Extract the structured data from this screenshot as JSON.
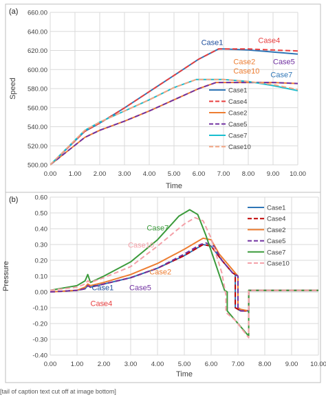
{
  "chart_data": [
    {
      "type": "line",
      "panel_label": "(a)",
      "xlabel": "Time",
      "ylabel": "Speed",
      "xlim": [
        0,
        10
      ],
      "ylim": [
        500,
        650
      ],
      "xticks": [
        "0.00",
        "1.00",
        "2.00",
        "3.00",
        "4.00",
        "5.00",
        "6.00",
        "7.00",
        "8.00",
        "9.00",
        "10.00"
      ],
      "yticks": [
        "500.00",
        "520.00",
        "540.00",
        "560.00",
        "580.00",
        "600.00",
        "620.00",
        "640.00",
        "660.00"
      ],
      "grid": true,
      "legend": "right",
      "series": [
        {
          "name": "Case1",
          "color": "#2e75b6",
          "dash": "solid",
          "x": [
            0,
            1.4,
            2,
            3,
            4,
            5,
            6,
            6.8,
            7,
            8,
            9,
            10
          ],
          "y": [
            500,
            533,
            541,
            556,
            572,
            588,
            604,
            614,
            614,
            613,
            611,
            609
          ]
        },
        {
          "name": "Case4",
          "color": "#e83e3e",
          "dash": "dash",
          "x": [
            0,
            1.4,
            2,
            3,
            4,
            5,
            6,
            6.8,
            7,
            8,
            9,
            10
          ],
          "y": [
            500,
            533,
            541,
            556,
            572,
            588,
            604,
            614,
            614,
            614,
            613,
            612
          ]
        },
        {
          "name": "Case2",
          "color": "#ed7d31",
          "dash": "solid",
          "x": [
            0,
            1.4,
            2,
            3,
            4,
            5,
            6,
            6.7,
            7,
            8,
            9,
            10
          ],
          "y": [
            500,
            527,
            534,
            543,
            553,
            564,
            575,
            581,
            581,
            581,
            581,
            580
          ]
        },
        {
          "name": "Case5",
          "color": "#7030a0",
          "dash": "dash",
          "x": [
            0,
            1.4,
            2,
            3,
            4,
            5,
            6,
            6.7,
            7,
            8,
            9,
            10
          ],
          "y": [
            500,
            527,
            534,
            543,
            553,
            564,
            575,
            581,
            581,
            581,
            581,
            580
          ]
        },
        {
          "name": "Case7",
          "color": "#17becf",
          "dash": "solid",
          "x": [
            0,
            1.4,
            2,
            3,
            4,
            5,
            5.9,
            6.5,
            7,
            8,
            9,
            10
          ],
          "y": [
            500,
            534,
            542,
            553,
            564,
            576,
            584,
            584,
            584,
            582,
            578,
            573
          ]
        },
        {
          "name": "Case10",
          "color": "#f4a582",
          "dash": "dash",
          "x": [
            0,
            1.4,
            2,
            3,
            4,
            5,
            5.9,
            6.5,
            7,
            8,
            9,
            10
          ],
          "y": [
            500,
            534,
            542,
            553,
            564,
            576,
            584,
            584,
            584,
            582,
            579,
            574
          ]
        }
      ],
      "annotations": [
        {
          "text": "Case1",
          "x": 6.1,
          "y": 618,
          "color": "#1f4e9c"
        },
        {
          "text": "Case4",
          "x": 8.4,
          "y": 620,
          "color": "#e83e3e"
        },
        {
          "text": "Case2",
          "x": 7.4,
          "y": 599,
          "color": "#ed7d31"
        },
        {
          "text": "Case5",
          "x": 9.0,
          "y": 599,
          "color": "#7030a0"
        },
        {
          "text": "Case10",
          "x": 7.4,
          "y": 590,
          "color": "#ed7d31"
        },
        {
          "text": "Case7",
          "x": 8.9,
          "y": 586,
          "color": "#2e75b6"
        }
      ]
    },
    {
      "type": "line",
      "panel_label": "(b)",
      "xlabel": "Time",
      "ylabel": "Pressure",
      "xlim": [
        0,
        10
      ],
      "ylim": [
        -0.4,
        0.6
      ],
      "xticks": [
        "0.00",
        "1.00",
        "2.00",
        "3.00",
        "4.00",
        "5.00",
        "6.00",
        "7.00",
        "8.00",
        "9.00",
        "10.00"
      ],
      "yticks": [
        "-0.40",
        "-0.30",
        "-0.20",
        "-0.10",
        "0.00",
        "0.10",
        "0.20",
        "0.30",
        "0.40",
        "0.50",
        "0.60"
      ],
      "grid": true,
      "legend": "right",
      "series": [
        {
          "name": "Case1",
          "color": "#2e75b6",
          "dash": "solid",
          "x": [
            0,
            1,
            1.3,
            1.4,
            1.5,
            2,
            3,
            4,
            5,
            5.5,
            5.7,
            6,
            6.4,
            6.8,
            6.9,
            6.9,
            7.1,
            7.4,
            7.4,
            8,
            10
          ],
          "y": [
            0,
            0.01,
            0.02,
            0.04,
            0.03,
            0.05,
            0.09,
            0.15,
            0.23,
            0.28,
            0.3,
            0.29,
            0.2,
            0.12,
            0.11,
            -0.1,
            -0.12,
            -0.12,
            0.01,
            0.01,
            0.01
          ]
        },
        {
          "name": "Case4",
          "color": "#c00000",
          "dash": "dash",
          "x": [
            0,
            1,
            1.3,
            1.4,
            1.5,
            2,
            3,
            4,
            5,
            5.5,
            5.7,
            6,
            6.4,
            6.8,
            6.9,
            6.9,
            7.1,
            7.4,
            7.4,
            8,
            10
          ],
          "y": [
            0,
            0.01,
            0.02,
            0.04,
            0.03,
            0.05,
            0.09,
            0.15,
            0.23,
            0.28,
            0.3,
            0.29,
            0.2,
            0.12,
            0.11,
            -0.1,
            -0.12,
            -0.12,
            0.01,
            0.01,
            0.01
          ]
        },
        {
          "name": "Case2",
          "color": "#ed7d31",
          "dash": "solid",
          "x": [
            0,
            1,
            1.3,
            1.4,
            1.5,
            2,
            3,
            4,
            5,
            5.5,
            5.7,
            6,
            6.3,
            6.8,
            7.0,
            7.0,
            7.1,
            7.4,
            7.4,
            8,
            10
          ],
          "y": [
            0,
            0.01,
            0.03,
            0.05,
            0.04,
            0.06,
            0.11,
            0.18,
            0.27,
            0.32,
            0.34,
            0.33,
            0.24,
            0.14,
            0.1,
            -0.1,
            -0.11,
            -0.12,
            0.01,
            0.01,
            0.01
          ]
        },
        {
          "name": "Case5",
          "color": "#7030a0",
          "dash": "dash",
          "x": [
            0,
            1,
            1.3,
            1.4,
            1.5,
            2,
            3,
            4,
            5,
            5.6,
            5.8,
            6.1,
            6.4,
            6.8,
            7.0,
            7.0,
            7.1,
            7.4,
            7.4,
            8,
            10
          ],
          "y": [
            0,
            0.01,
            0.02,
            0.04,
            0.03,
            0.05,
            0.09,
            0.15,
            0.24,
            0.3,
            0.31,
            0.29,
            0.2,
            0.12,
            0.1,
            -0.11,
            -0.12,
            -0.12,
            0.01,
            0.01,
            0.01
          ]
        },
        {
          "name": "Case7",
          "color": "#3a9a3a",
          "dash": "solid",
          "x": [
            0,
            1,
            1.3,
            1.4,
            1.5,
            2,
            3,
            4,
            4.8,
            5.2,
            5.5,
            5.8,
            6.2,
            6.5,
            6.6,
            6.6,
            7.0,
            7.4,
            7.4,
            8,
            10
          ],
          "y": [
            0.01,
            0.04,
            0.07,
            0.11,
            0.06,
            0.1,
            0.19,
            0.33,
            0.48,
            0.52,
            0.49,
            0.36,
            0.16,
            0.01,
            0.0,
            -0.12,
            -0.2,
            -0.28,
            0.01,
            0.01,
            0.01
          ]
        },
        {
          "name": "Case10",
          "color": "#f4a0a8",
          "dash": "dash",
          "x": [
            0,
            1,
            1.3,
            1.4,
            1.5,
            2,
            3,
            4,
            5,
            5.4,
            5.7,
            6,
            6.4,
            6.55,
            6.55,
            6.9,
            7.4,
            7.4,
            8,
            10
          ],
          "y": [
            0.01,
            0.03,
            0.05,
            0.07,
            0.06,
            0.09,
            0.16,
            0.29,
            0.43,
            0.47,
            0.45,
            0.34,
            0.12,
            -0.02,
            -0.13,
            -0.18,
            -0.29,
            0.01,
            0.01,
            0.01
          ]
        }
      ],
      "annotations": [
        {
          "text": "Case7",
          "x": 3.6,
          "y": 0.39,
          "color": "#3a9a3a"
        },
        {
          "text": "Case10",
          "x": 2.9,
          "y": 0.28,
          "color": "#f4a0a8"
        },
        {
          "text": "Case2",
          "x": 3.7,
          "y": 0.11,
          "color": "#ed7d31"
        },
        {
          "text": "Case1",
          "x": 1.55,
          "y": 0.01,
          "color": "#1f4e9c"
        },
        {
          "text": "Case5",
          "x": 2.95,
          "y": 0.01,
          "color": "#7030a0"
        },
        {
          "text": "Case4",
          "x": 1.5,
          "y": -0.09,
          "color": "#e83e3e"
        }
      ]
    }
  ],
  "caption": "[tail of caption text cut off at image bottom]"
}
